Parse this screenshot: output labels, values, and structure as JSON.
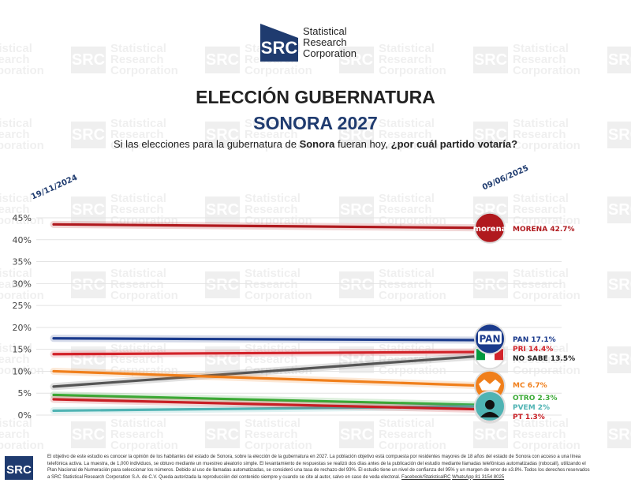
{
  "brand": {
    "logo_mark": "SRC",
    "line1": "Statistical",
    "line2": "Research",
    "line3": "Corporation"
  },
  "watermark": {
    "mark": "SRC",
    "line1": "Statistical",
    "line2": "Research",
    "line3": "Corporation"
  },
  "header": {
    "title": "ELECCIÓN GUBERNATURA",
    "subtitle": "SONORA 2027",
    "question_pre": "Si las elecciones para la gubernatura de ",
    "question_state": "Sonora",
    "question_mid": " fueran hoy, ",
    "question_bold": "¿por cuál partido votaría?"
  },
  "chart_data": {
    "type": "line",
    "x": [
      "19/11/2024",
      "09/06/2025"
    ],
    "yticks": [
      "0%",
      "5%",
      "10%",
      "15%",
      "20%",
      "25%",
      "30%",
      "35%",
      "40%",
      "45%"
    ],
    "ylim": [
      0,
      45
    ],
    "series": [
      {
        "name": "MORENA",
        "values": [
          43.5,
          42.7
        ],
        "label": "MORENA 42.7%",
        "color": "#b0191e",
        "logo": "morena"
      },
      {
        "name": "PAN",
        "values": [
          17.5,
          17.1
        ],
        "label": "PAN 17.1%",
        "color": "#1a3a8c",
        "logo": "PAN"
      },
      {
        "name": "PRI",
        "values": [
          13.9,
          14.4
        ],
        "label": "PRI 14.4%",
        "color": "#d2232a",
        "logo": "PRI"
      },
      {
        "name": "NO SABE",
        "values": [
          6.5,
          13.5
        ],
        "label": "NO SABE 13.5%",
        "color": "#555555",
        "logo": ""
      },
      {
        "name": "MC",
        "values": [
          10.0,
          6.7
        ],
        "label": "MC 6.7%",
        "color": "#f07f1b",
        "logo": "MC"
      },
      {
        "name": "OTRO",
        "values": [
          4.6,
          2.3
        ],
        "label": "OTRO 2.3%",
        "color": "#3aa935",
        "logo": ""
      },
      {
        "name": "PVEM",
        "values": [
          1.0,
          2.0
        ],
        "label": "PVEM 2%",
        "color": "#4fb3b3",
        "logo": "PVEM"
      },
      {
        "name": "PT",
        "values": [
          3.6,
          1.3
        ],
        "label": "PT 1.3%",
        "color": "#c81e24",
        "logo": "PT"
      }
    ]
  },
  "logos": {
    "morena": "morena",
    "PAN": "PAN"
  },
  "footer": {
    "text": "El objetivo de este estudio es conocer la opinión de los habitantes del estado de Sonora, sobre la elección de la gubernatura en 2027. La población objetivo está compuesta por residentes mayores de 18 años del estado de Sonora con acceso a una línea telefónica activa. La muestra, de 1,000 individuos, se obtuvo mediante un muestreo aleatorio simple. El levantamiento de respuestas se realizó dos días antes de la publicación del estudio mediante llamadas telefónicas automatizadas (robocall), utilizando el Plan Nacional de Numeración para seleccionar los números. Debido al uso de llamadas automatizadas, se consideró una tasa de rechazo del 93%. El estudio tiene un nivel de confianza del 95% y un margen de error de ±3.8%. Todos los derechos reservados a SRC Statistical Research Corporation S.A. de C.V. Queda autorizada la reproducción del contenido siempre y cuando se cite al autor, salvo en caso de veda electoral.",
    "link1": "Facebook/StatisticalRC",
    "link2": "WhatsApp 81 3154 8025",
    "logo_mark": "SRC"
  },
  "colors": {
    "navy": "#1f3b6f",
    "grid": "#e3e3e3"
  }
}
